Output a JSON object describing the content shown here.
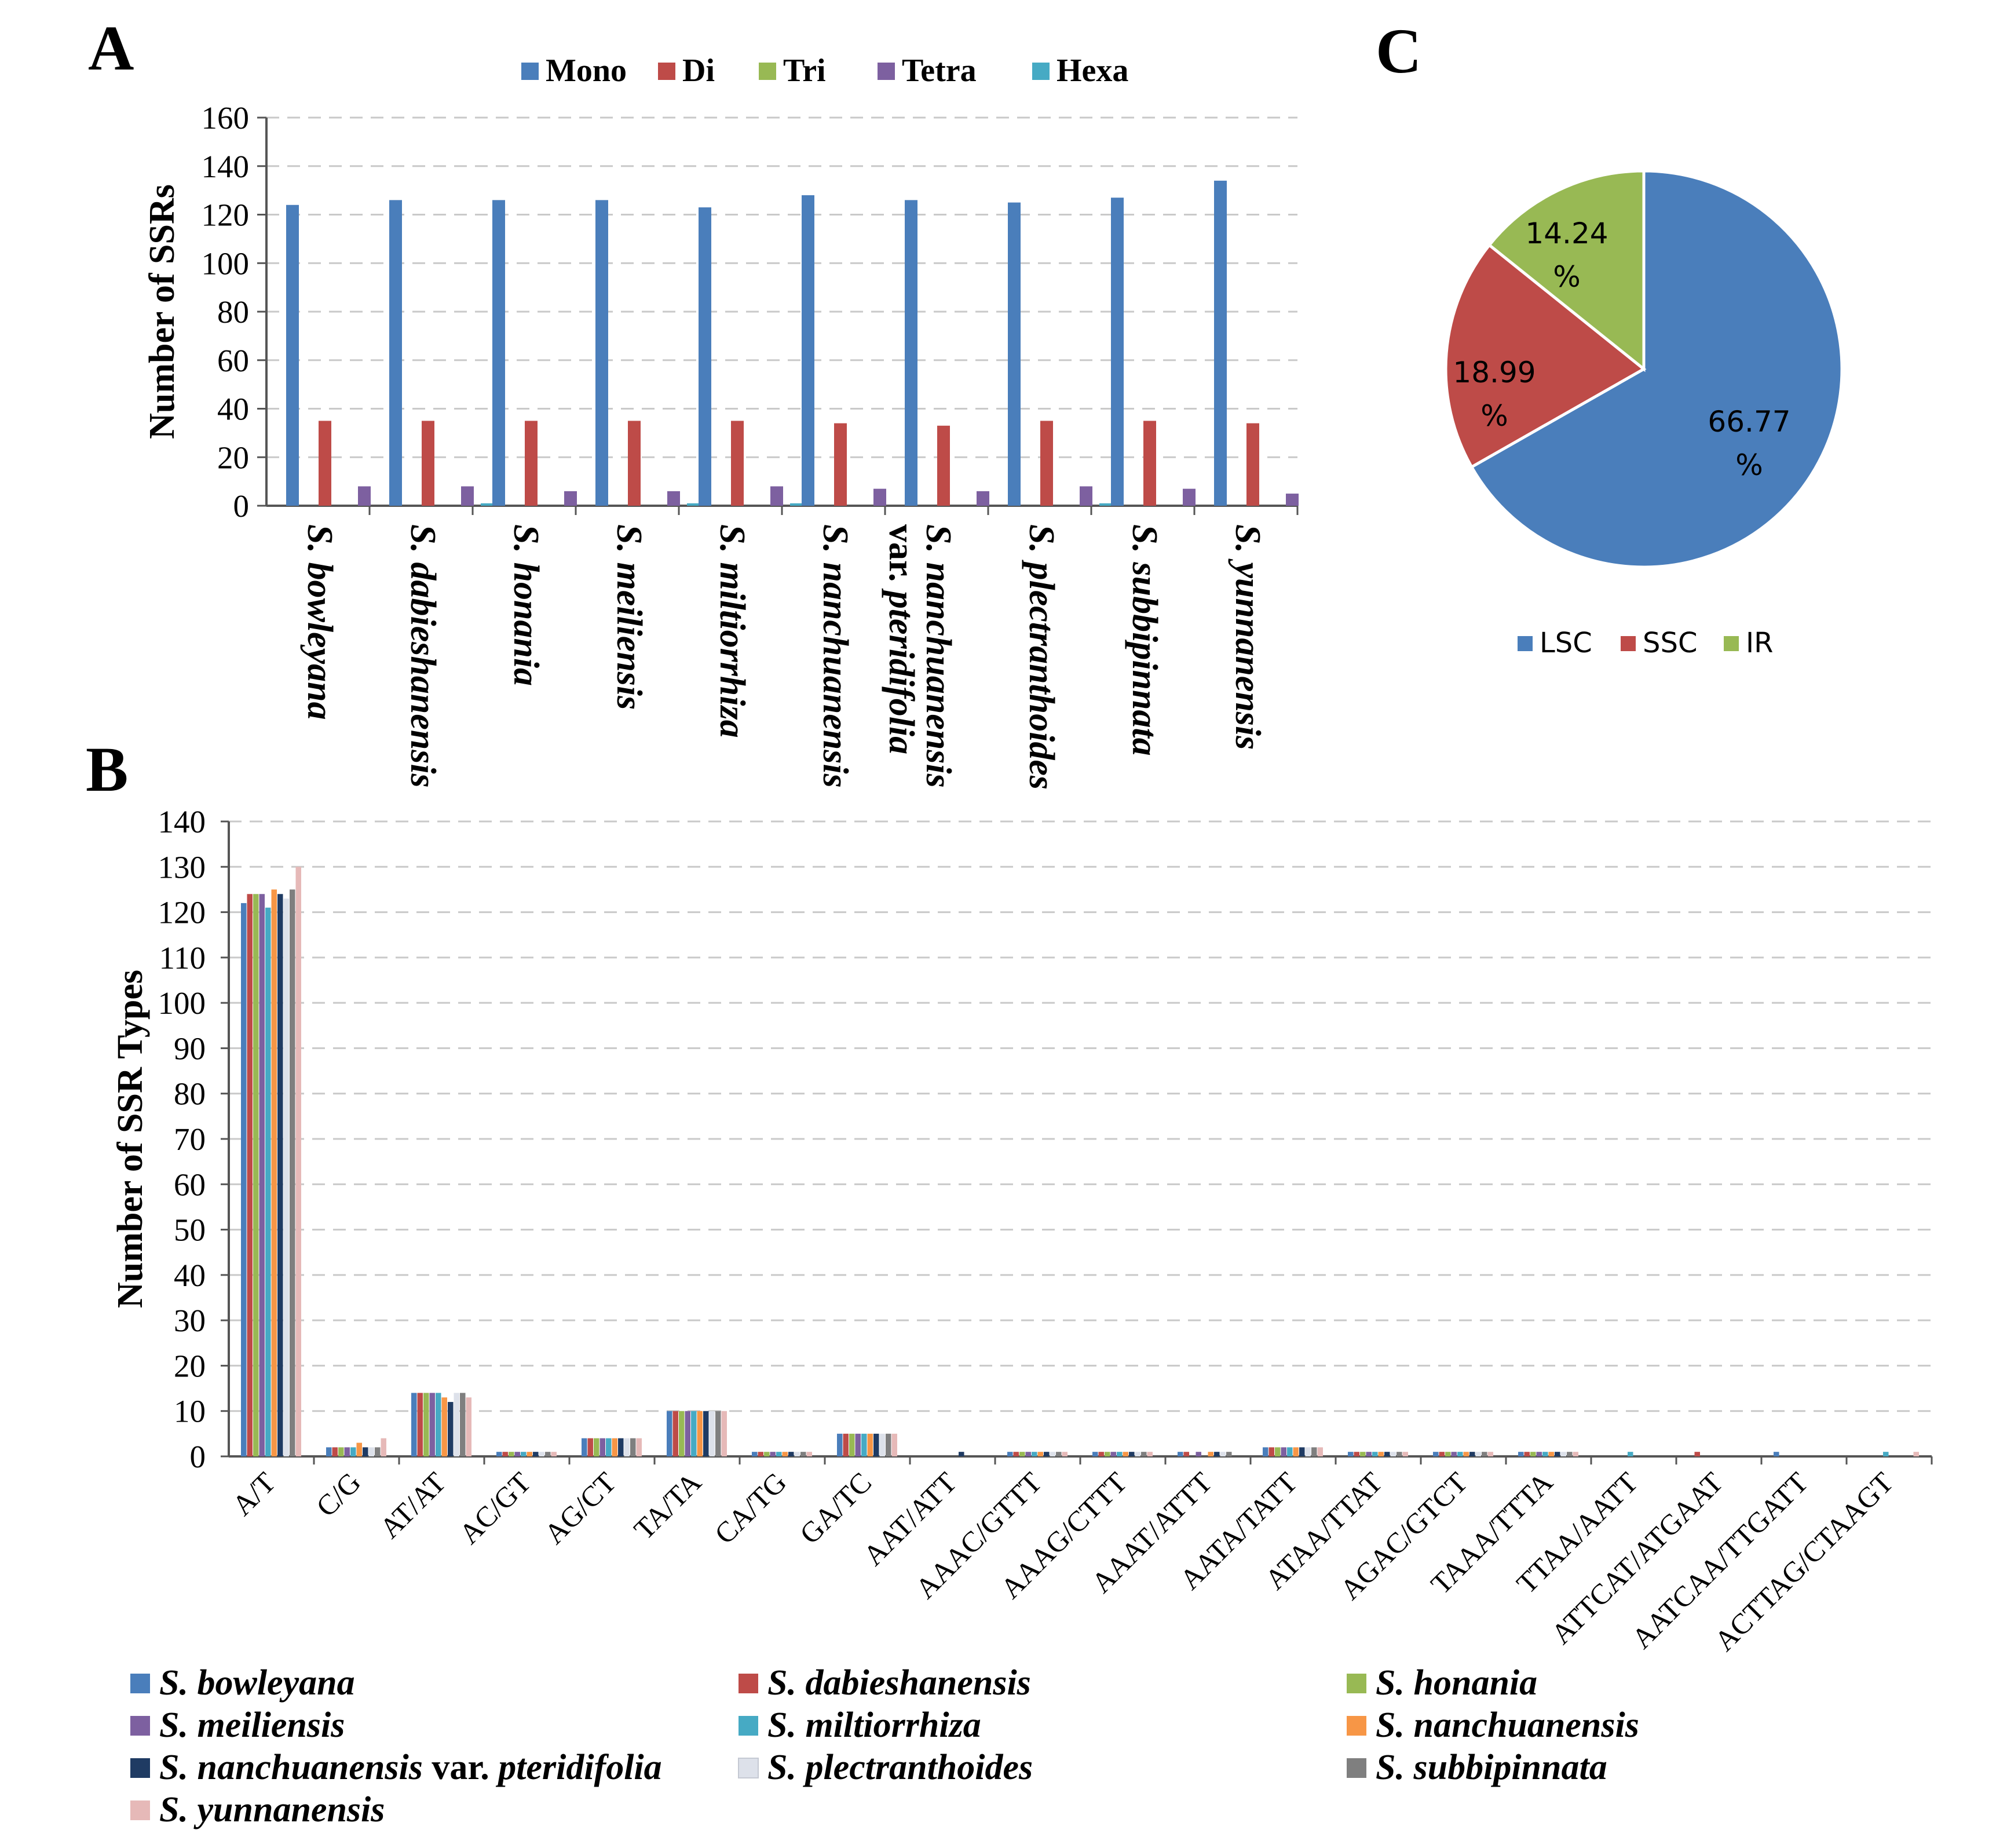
{
  "chart_data": [
    {
      "panel": "A",
      "type": "bar",
      "ylabel": "Number of SSRs",
      "ylim": [
        0,
        160
      ],
      "yticks": [
        0,
        20,
        40,
        60,
        80,
        100,
        120,
        140,
        160
      ],
      "categories": [
        [
          "S. bowleyana"
        ],
        [
          "S. dabieshanensis"
        ],
        [
          "S. honania"
        ],
        [
          "S. meiliensis"
        ],
        [
          "S. miltiorrhiza"
        ],
        [
          "S. nanchuanensis"
        ],
        [
          "S. nanchuanensis",
          "var. pteridifolia"
        ],
        [
          "S. plectranthoides"
        ],
        [
          "S. subbipinnata"
        ],
        [
          "S. yunnanensis"
        ]
      ],
      "series": [
        {
          "name": "Mono",
          "color": "#4a7ebb",
          "values": [
            124,
            126,
            126,
            126,
            123,
            128,
            126,
            125,
            127,
            134
          ]
        },
        {
          "name": "Di",
          "color": "#be4b48",
          "values": [
            35,
            35,
            35,
            35,
            35,
            34,
            33,
            35,
            35,
            34
          ]
        },
        {
          "name": "Tri",
          "color": "#98b954",
          "values": [
            0,
            0,
            0,
            0,
            0,
            0,
            0,
            0,
            0,
            0
          ]
        },
        {
          "name": "Tetra",
          "color": "#7d60a0",
          "values": [
            8,
            8,
            6,
            6,
            8,
            7,
            6,
            8,
            7,
            5
          ]
        },
        {
          "name": "Hexa",
          "color": "#46aac4",
          "values": [
            0,
            1,
            0,
            1,
            1,
            0,
            0,
            1,
            0,
            0
          ]
        }
      ]
    },
    {
      "panel": "B",
      "type": "bar",
      "ylabel": "Number of SSR Types",
      "ylim": [
        0,
        140
      ],
      "yticks": [
        0,
        10,
        20,
        30,
        40,
        50,
        60,
        70,
        80,
        90,
        100,
        110,
        120,
        130,
        140
      ],
      "categories": [
        "A/T",
        "C/G",
        "AT/AT",
        "AC/GT",
        "AG/CT",
        "TA/TA",
        "CA/TG",
        "GA/TC",
        "AAT/ATT",
        "AAAC/GTTT",
        "AAAG/CTTT",
        "AAAT/ATTT",
        "AATA/TATT",
        "ATAA/TTAT",
        "AGAC/GTCT",
        "TAAA/TTTA",
        "TTAA/AATT",
        "ATTCAT/ATGAAT",
        "AATCAA/TTGATT",
        "ACTTAG/CTAAGT"
      ],
      "series": [
        {
          "name": "S. bowleyana",
          "color": "#4a7ebb",
          "values": [
            122,
            2,
            14,
            1,
            4,
            10,
            1,
            5,
            0,
            1,
            1,
            1,
            2,
            1,
            1,
            1,
            0,
            0,
            1,
            0
          ]
        },
        {
          "name": "S. dabieshanensis",
          "color": "#be4b48",
          "values": [
            124,
            2,
            14,
            1,
            4,
            10,
            1,
            5,
            0,
            1,
            1,
            1,
            2,
            1,
            1,
            1,
            0,
            1,
            0,
            0
          ]
        },
        {
          "name": "S. honania",
          "color": "#98b954",
          "values": [
            124,
            2,
            14,
            1,
            4,
            10,
            1,
            5,
            0,
            1,
            1,
            0,
            2,
            1,
            1,
            1,
            0,
            0,
            0,
            0
          ]
        },
        {
          "name": "S. meiliensis",
          "color": "#7d60a0",
          "values": [
            124,
            2,
            14,
            1,
            4,
            10,
            1,
            5,
            0,
            1,
            1,
            1,
            2,
            1,
            1,
            1,
            0,
            0,
            0,
            0
          ]
        },
        {
          "name": "S. miltiorrhiza",
          "color": "#46aac4",
          "values": [
            121,
            2,
            14,
            1,
            4,
            10,
            1,
            5,
            0,
            1,
            1,
            0,
            2,
            1,
            1,
            1,
            1,
            0,
            0,
            1
          ]
        },
        {
          "name": "S. nanchuanensis",
          "color": "#f79646",
          "values": [
            125,
            3,
            13,
            1,
            4,
            10,
            1,
            5,
            0,
            1,
            1,
            1,
            2,
            1,
            1,
            1,
            0,
            0,
            0,
            0
          ]
        },
        {
          "name": "S. nanchuanensis var. pteridifolia",
          "color": "#1f3b63",
          "values": [
            124,
            2,
            12,
            1,
            4,
            10,
            1,
            5,
            1,
            1,
            1,
            1,
            2,
            1,
            1,
            1,
            0,
            0,
            0,
            0
          ]
        },
        {
          "name": "S. plectranthoides",
          "color": "#dde1ea",
          "values": [
            123,
            2,
            14,
            1,
            4,
            10,
            1,
            5,
            0,
            1,
            1,
            1,
            2,
            1,
            1,
            1,
            0,
            0,
            0,
            0
          ]
        },
        {
          "name": "S. subbipinnata",
          "color": "#7f7f7f",
          "values": [
            125,
            2,
            14,
            1,
            4,
            10,
            1,
            5,
            0,
            1,
            1,
            1,
            2,
            1,
            1,
            1,
            0,
            0,
            0,
            0
          ]
        },
        {
          "name": "S. yunnanensis",
          "color": "#e6b9b8",
          "values": [
            130,
            4,
            13,
            1,
            4,
            10,
            1,
            5,
            0,
            1,
            1,
            0,
            2,
            1,
            1,
            1,
            0,
            0,
            0,
            1
          ]
        }
      ]
    },
    {
      "panel": "C",
      "type": "pie",
      "slices": [
        {
          "name": "LSC",
          "value": 66.77,
          "label": [
            "66.77",
            "%"
          ],
          "color": "#4a7ebb"
        },
        {
          "name": "SSC",
          "value": 18.99,
          "label": [
            "18.99",
            "%"
          ],
          "color": "#be4b48"
        },
        {
          "name": "IR",
          "value": 14.24,
          "label": [
            "14.24",
            "%"
          ],
          "color": "#98b954"
        }
      ]
    }
  ]
}
